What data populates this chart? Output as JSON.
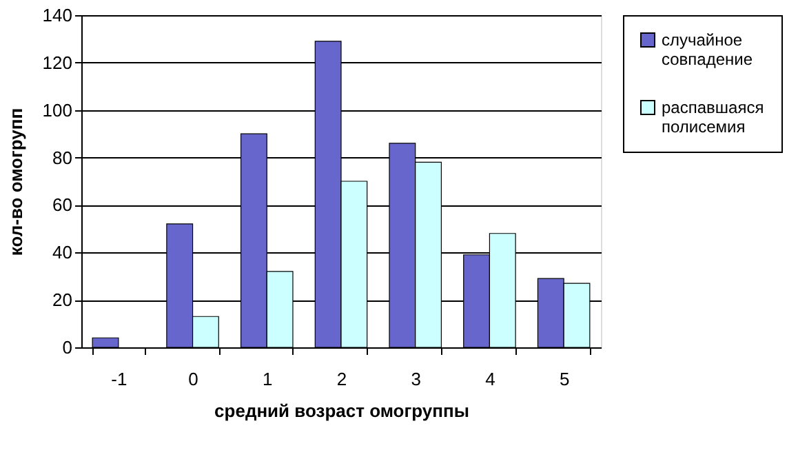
{
  "chart_data": {
    "type": "bar",
    "xlabel": "средний возраст омогруппы",
    "ylabel": "кол-во омогрупп",
    "categories": [
      "-1",
      "0",
      "1",
      "2",
      "3",
      "4",
      "5"
    ],
    "series": [
      {
        "name": "случайное совпадение",
        "color": "#6666cc",
        "values": [
          4,
          52,
          90,
          129,
          86,
          39,
          29
        ]
      },
      {
        "name": "распавшаяся полисемия",
        "color": "#ccffff",
        "values": [
          null,
          13,
          32,
          70,
          78,
          48,
          27
        ]
      }
    ],
    "ylim": [
      0,
      140
    ],
    "yticks": [
      0,
      20,
      40,
      60,
      80,
      100,
      120,
      140
    ],
    "grid": "y",
    "legend": "right"
  }
}
